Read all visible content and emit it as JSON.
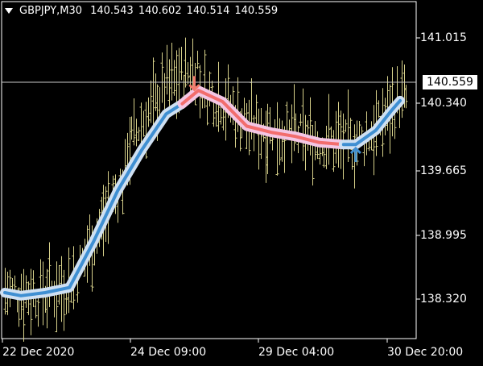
{
  "header": {
    "symbol": "GBPJPY,M30",
    "open": "140.543",
    "high": "140.602",
    "low": "140.514",
    "close": "140.559"
  },
  "current_price": "140.559",
  "price_axis": [
    "141.015",
    "140.340",
    "139.665",
    "138.995",
    "138.320"
  ],
  "time_axis": [
    "22 Dec 2020",
    "24 Dec 09:00",
    "29 Dec 04:00",
    "30 Dec 20:00"
  ],
  "colors": {
    "background": "#000000",
    "bars": "#d6d08a",
    "line_up": "#3f8fd2",
    "line_down": "#f26d6d",
    "glow_up": "#cfe0f2",
    "glow_down": "#f3c6e4",
    "arrow_up": "#3f8fd2",
    "arrow_down": "#f27a6d",
    "price_line": "#c8c8c8",
    "grid": "#ffffff"
  },
  "chart_data": {
    "type": "ohlc",
    "indicator_points": [
      {
        "t": 0,
        "v": 138.45,
        "dir": "up"
      },
      {
        "t": 4,
        "v": 138.42,
        "dir": "up"
      },
      {
        "t": 10,
        "v": 138.45,
        "dir": "up"
      },
      {
        "t": 16,
        "v": 138.5,
        "dir": "up"
      },
      {
        "t": 22,
        "v": 138.95,
        "dir": "up"
      },
      {
        "t": 28,
        "v": 139.45,
        "dir": "up"
      },
      {
        "t": 34,
        "v": 139.85,
        "dir": "up"
      },
      {
        "t": 40,
        "v": 140.2,
        "dir": "up"
      },
      {
        "t": 44,
        "v": 140.3,
        "dir": "up"
      },
      {
        "t": 48,
        "v": 140.43,
        "dir": "down"
      },
      {
        "t": 54,
        "v": 140.32,
        "dir": "down"
      },
      {
        "t": 60,
        "v": 140.08,
        "dir": "down"
      },
      {
        "t": 66,
        "v": 140.02,
        "dir": "down"
      },
      {
        "t": 72,
        "v": 139.98,
        "dir": "down"
      },
      {
        "t": 78,
        "v": 139.92,
        "dir": "down"
      },
      {
        "t": 84,
        "v": 139.9,
        "dir": "down"
      },
      {
        "t": 87,
        "v": 139.9,
        "dir": "up"
      },
      {
        "t": 92,
        "v": 140.04,
        "dir": "up"
      },
      {
        "t": 96,
        "v": 140.24,
        "dir": "up"
      },
      {
        "t": 98,
        "v": 140.33,
        "dir": "up"
      }
    ],
    "signals": [
      {
        "t": 47,
        "v": 140.5,
        "type": "sell"
      },
      {
        "t": 87,
        "v": 139.8,
        "type": "buy"
      }
    ],
    "ylim": [
      138.0,
      141.3
    ]
  }
}
